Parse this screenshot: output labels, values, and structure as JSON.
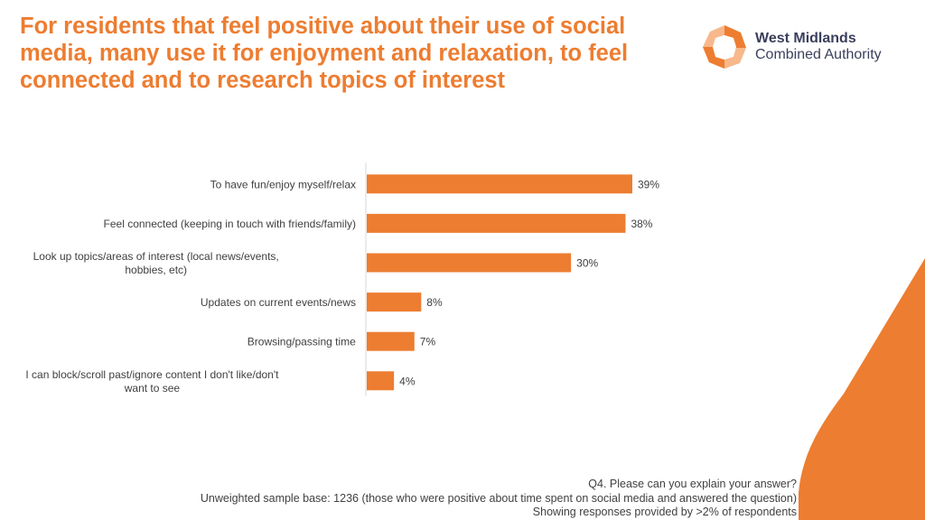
{
  "title": "For residents that feel positive about their use of social media, many use it for enjoyment and relaxation, to feel connected and to research topics of interest",
  "logo": {
    "line1": "West Midlands",
    "line2": "Combined Authority"
  },
  "colors": {
    "accent": "#ED7D31",
    "axis": "#d9d9d9",
    "text": "#404040"
  },
  "chart_data": {
    "type": "bar",
    "orientation": "horizontal",
    "categories": [
      "To have fun/enjoy myself/relax",
      "Feel connected (keeping in touch with friends/family)",
      "Look up topics/areas of interest (local news/events, hobbies, etc)",
      "Updates on current events/news",
      "Browsing/passing time",
      "I can block/scroll past/ignore content I don't like/don't want to see"
    ],
    "category_lines": [
      [
        "To have fun/enjoy myself/relax"
      ],
      [
        "Feel connected (keeping in touch with friends/family)"
      ],
      [
        "Look up topics/areas of interest (local news/events,",
        "hobbies, etc)"
      ],
      [
        "Updates on current events/news"
      ],
      [
        "Browsing/passing time"
      ],
      [
        "I can block/scroll past/ignore content I don't like/don't",
        "want to see"
      ]
    ],
    "values": [
      39,
      38,
      30,
      8,
      7,
      4
    ],
    "data_labels": [
      "39%",
      "38%",
      "30%",
      "8%",
      "7%",
      "4%"
    ],
    "unit": "%",
    "xlim": [
      0,
      40
    ],
    "color": "#ED7D31",
    "grid": false,
    "legend": "none"
  },
  "footer": {
    "question": "Q4. Please can you explain your answer?",
    "base": "Unweighted sample base: 1236 (those who were positive about time spent on social media and answered the question)",
    "note": "Showing responses provided by >2% of respondents"
  }
}
